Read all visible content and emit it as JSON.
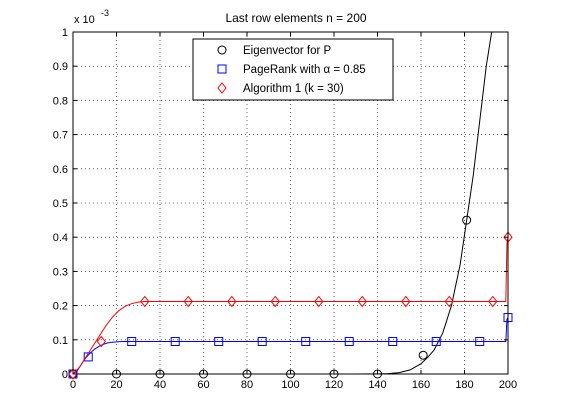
{
  "chart_data": {
    "type": "line",
    "title": "Last row elements n = 200",
    "xlabel": "",
    "ylabel": "",
    "y_scale_label": {
      "base": "x 10",
      "exponent": "-3"
    },
    "xlim": [
      0,
      200
    ],
    "ylim": [
      0,
      1
    ],
    "grid": true,
    "legend_placement": "top-center",
    "x_ticks": [
      0,
      20,
      40,
      60,
      80,
      100,
      120,
      140,
      160,
      180,
      200
    ],
    "x_tick_labels": [
      "0",
      "20",
      "40",
      "60",
      "80",
      "100",
      "120",
      "140",
      "160",
      "180",
      "200"
    ],
    "y_ticks": [
      0,
      0.1,
      0.2,
      0.3,
      0.4,
      0.5,
      0.6,
      0.7,
      0.8,
      0.9,
      1
    ],
    "y_tick_labels": [
      "0",
      "0.1",
      "0.2",
      "0.3",
      "0.4",
      "0.5",
      "0.6",
      "0.7",
      "0.8",
      "0.9",
      "1"
    ],
    "series": [
      {
        "name": "Eigenvector for P",
        "color": "#000000",
        "marker": "circle",
        "curve": {
          "x": [
            0,
            20,
            40,
            60,
            80,
            100,
            120,
            130,
            140,
            145,
            150,
            155,
            160,
            163,
            166,
            170,
            174,
            178,
            181,
            184,
            187,
            190,
            192.5
          ],
          "y": [
            0,
            0,
            0,
            0,
            0,
            0,
            0,
            0,
            0.0002,
            0.001,
            0.004,
            0.012,
            0.03,
            0.048,
            0.07,
            0.12,
            0.2,
            0.32,
            0.45,
            0.58,
            0.74,
            0.9,
            1.0
          ]
        },
        "markers": {
          "x": [
            0,
            20,
            40,
            60,
            80,
            100,
            120,
            140,
            161,
            181
          ],
          "y": [
            0,
            0,
            0,
            0,
            0,
            0,
            0,
            0,
            0.055,
            0.45
          ]
        }
      },
      {
        "name": "PageRank with α = 0.85",
        "color": "#0000ff",
        "marker": "square",
        "curve": {
          "x": [
            0,
            2,
            4,
            6,
            8,
            10,
            12,
            14,
            16,
            18,
            20,
            23,
            26,
            30,
            40,
            60,
            80,
            100,
            120,
            140,
            160,
            180,
            199,
            199.5,
            200
          ],
          "y": [
            0,
            0.01,
            0.03,
            0.048,
            0.062,
            0.073,
            0.081,
            0.087,
            0.091,
            0.093,
            0.094,
            0.095,
            0.095,
            0.095,
            0.095,
            0.095,
            0.095,
            0.095,
            0.095,
            0.095,
            0.095,
            0.095,
            0.095,
            0.16,
            0.165
          ]
        },
        "markers": {
          "x": [
            0,
            7,
            27,
            47,
            67,
            87,
            107,
            127,
            147,
            167,
            187,
            200
          ],
          "y": [
            0,
            0.05,
            0.095,
            0.095,
            0.095,
            0.095,
            0.095,
            0.095,
            0.095,
            0.095,
            0.095,
            0.165
          ]
        }
      },
      {
        "name": "Algorithm 1 (k = 30)",
        "color": "#ff0000",
        "marker": "diamond",
        "curve": {
          "x": [
            0,
            3,
            6,
            9,
            12,
            15,
            18,
            21,
            24,
            27,
            30,
            33,
            40,
            60,
            80,
            100,
            120,
            140,
            160,
            180,
            199,
            199.5,
            200
          ],
          "y": [
            0,
            0.02,
            0.05,
            0.08,
            0.11,
            0.14,
            0.165,
            0.185,
            0.198,
            0.206,
            0.21,
            0.212,
            0.212,
            0.212,
            0.212,
            0.212,
            0.212,
            0.212,
            0.212,
            0.212,
            0.212,
            0.38,
            0.4
          ]
        },
        "markers": {
          "x": [
            0,
            13,
            33,
            53,
            73,
            93,
            113,
            133,
            153,
            173,
            193,
            200
          ],
          "y": [
            0,
            0.095,
            0.212,
            0.212,
            0.212,
            0.212,
            0.212,
            0.212,
            0.212,
            0.212,
            0.212,
            0.4
          ]
        }
      }
    ]
  }
}
